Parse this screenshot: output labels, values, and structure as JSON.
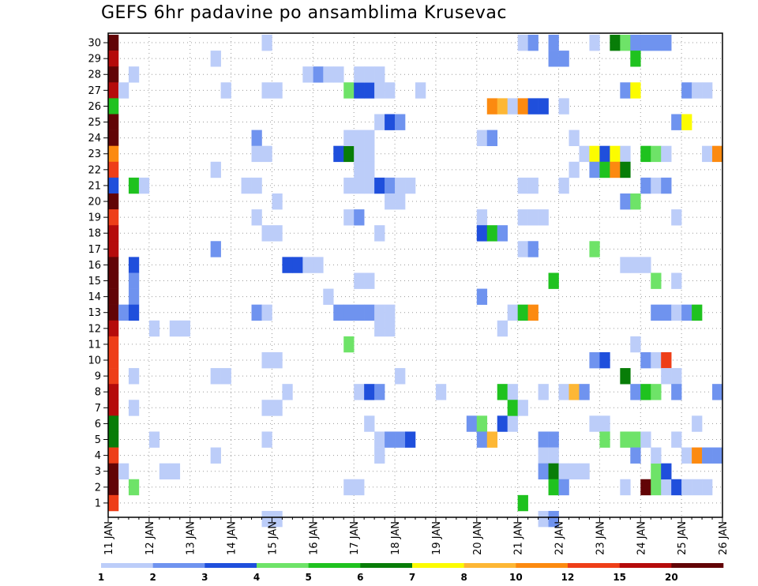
{
  "chart_data": {
    "type": "heatmap",
    "title": "GEFS 6hr padavine po ansamblima Krusevac",
    "xlabel": "",
    "ylabel": "",
    "x_ticks": [
      "11 JAN",
      "12 JAN",
      "13 JAN",
      "14 JAN",
      "15 JAN",
      "16 JAN",
      "17 JAN",
      "18 JAN",
      "19 JAN",
      "20 JAN",
      "21 JAN",
      "22 JAN",
      "23 JAN",
      "24 JAN",
      "25 JAN",
      "26 JAN"
    ],
    "y_ticks": [
      1,
      2,
      3,
      4,
      5,
      6,
      7,
      8,
      9,
      10,
      11,
      12,
      13,
      14,
      15,
      16,
      17,
      18,
      19,
      20,
      21,
      22,
      23,
      24,
      25,
      26,
      27,
      28,
      29,
      30
    ],
    "xlim": [
      0,
      60
    ],
    "ylim": [
      0,
      30
    ],
    "grid": true,
    "colorbar": {
      "levels": [
        "1",
        "2",
        "3",
        "4",
        "5",
        "6",
        "7",
        "8",
        "10",
        "12",
        "15",
        "20"
      ],
      "colors": [
        "#bccdf9",
        "#6f93ef",
        "#1f4fdc",
        "#6ee368",
        "#1fc21f",
        "#087d08",
        "#fcfc00",
        "#fdb735",
        "#fc8a10",
        "#ee3e18",
        "#b50b0b",
        "#620406"
      ]
    },
    "cells": [
      [
        0,
        30,
        11
      ],
      [
        0,
        29,
        10
      ],
      [
        0,
        28,
        11
      ],
      [
        0,
        27,
        10
      ],
      [
        0,
        26,
        4
      ],
      [
        0,
        25,
        11
      ],
      [
        0,
        24,
        11
      ],
      [
        0,
        23,
        8
      ],
      [
        0,
        22,
        9
      ],
      [
        0,
        21,
        2
      ],
      [
        0,
        20,
        11
      ],
      [
        0,
        19,
        9
      ],
      [
        0,
        18,
        10
      ],
      [
        0,
        17,
        10
      ],
      [
        0,
        16,
        11
      ],
      [
        0,
        15,
        11
      ],
      [
        0,
        14,
        11
      ],
      [
        0,
        13,
        11
      ],
      [
        0,
        12,
        10
      ],
      [
        0,
        11,
        9
      ],
      [
        0,
        10,
        9
      ],
      [
        0,
        9,
        9
      ],
      [
        0,
        8,
        10
      ],
      [
        0,
        7,
        10
      ],
      [
        0,
        6,
        5
      ],
      [
        0,
        5,
        5
      ],
      [
        0,
        4,
        9
      ],
      [
        0,
        3,
        11
      ],
      [
        0,
        2,
        11
      ],
      [
        0,
        1,
        9
      ],
      [
        1,
        27,
        0
      ],
      [
        1,
        13,
        1
      ],
      [
        1,
        3,
        0
      ],
      [
        2,
        28,
        0
      ],
      [
        2,
        21,
        4
      ],
      [
        2,
        16,
        2
      ],
      [
        2,
        15,
        1
      ],
      [
        2,
        14,
        1
      ],
      [
        2,
        13,
        2
      ],
      [
        2,
        9,
        0
      ],
      [
        2,
        7,
        0
      ],
      [
        2,
        2,
        3
      ],
      [
        3,
        21,
        0
      ],
      [
        4,
        12,
        0
      ],
      [
        4,
        5,
        0
      ],
      [
        5,
        3,
        0
      ],
      [
        6,
        12,
        0
      ],
      [
        6,
        3,
        0
      ],
      [
        7,
        12,
        0
      ],
      [
        10,
        29,
        0
      ],
      [
        10,
        22,
        0
      ],
      [
        10,
        17,
        1
      ],
      [
        10,
        9,
        0
      ],
      [
        10,
        4,
        0
      ],
      [
        11,
        27,
        0
      ],
      [
        11,
        9,
        0
      ],
      [
        13,
        21,
        0
      ],
      [
        14,
        21,
        0
      ],
      [
        14,
        13,
        1
      ],
      [
        15,
        13,
        0
      ],
      [
        14,
        24,
        1
      ],
      [
        14,
        23,
        0
      ],
      [
        15,
        23,
        0
      ],
      [
        14,
        19,
        0
      ],
      [
        15,
        30,
        0
      ],
      [
        15,
        0,
        0
      ],
      [
        16,
        0,
        0
      ],
      [
        15,
        27,
        0
      ],
      [
        16,
        27,
        0
      ],
      [
        15,
        18,
        0
      ],
      [
        16,
        18,
        0
      ],
      [
        15,
        10,
        0
      ],
      [
        16,
        10,
        0
      ],
      [
        15,
        7,
        0
      ],
      [
        16,
        7,
        0
      ],
      [
        15,
        5,
        0
      ],
      [
        16,
        20,
        0
      ],
      [
        17,
        8,
        0
      ],
      [
        17,
        16,
        2
      ],
      [
        18,
        16,
        2
      ],
      [
        19,
        16,
        0
      ],
      [
        20,
        16,
        0
      ],
      [
        20,
        28,
        1
      ],
      [
        19,
        28,
        0
      ],
      [
        21,
        28,
        0
      ],
      [
        22,
        28,
        0
      ],
      [
        21,
        14,
        0
      ],
      [
        22,
        13,
        1
      ],
      [
        23,
        13,
        1
      ],
      [
        24,
        13,
        1
      ],
      [
        25,
        13,
        1
      ],
      [
        26,
        13,
        0
      ],
      [
        27,
        13,
        0
      ],
      [
        22,
        23,
        2
      ],
      [
        23,
        23,
        5
      ],
      [
        24,
        23,
        0
      ],
      [
        25,
        23,
        0
      ],
      [
        23,
        27,
        3
      ],
      [
        24,
        27,
        2
      ],
      [
        25,
        27,
        2
      ],
      [
        26,
        27,
        0
      ],
      [
        24,
        28,
        0
      ],
      [
        25,
        28,
        0
      ],
      [
        26,
        28,
        0
      ],
      [
        24,
        22,
        0
      ],
      [
        25,
        22,
        0
      ],
      [
        23,
        21,
        0
      ],
      [
        24,
        21,
        0
      ],
      [
        25,
        21,
        0
      ],
      [
        26,
        21,
        2
      ],
      [
        27,
        21,
        1
      ],
      [
        28,
        21,
        0
      ],
      [
        29,
        21,
        0
      ],
      [
        23,
        19,
        0
      ],
      [
        24,
        19,
        1
      ],
      [
        23,
        11,
        3
      ],
      [
        23,
        2,
        0
      ],
      [
        24,
        2,
        0
      ],
      [
        23,
        24,
        0
      ],
      [
        24,
        24,
        0
      ],
      [
        25,
        24,
        0
      ],
      [
        24,
        15,
        0
      ],
      [
        25,
        15,
        0
      ],
      [
        24,
        8,
        0
      ],
      [
        25,
        8,
        2
      ],
      [
        26,
        8,
        1
      ],
      [
        25,
        6,
        0
      ],
      [
        26,
        18,
        0
      ],
      [
        26,
        12,
        0
      ],
      [
        27,
        12,
        0
      ],
      [
        26,
        5,
        0
      ],
      [
        27,
        5,
        1
      ],
      [
        28,
        5,
        1
      ],
      [
        29,
        5,
        2
      ],
      [
        26,
        4,
        0
      ],
      [
        26,
        25,
        0
      ],
      [
        27,
        25,
        2
      ],
      [
        28,
        25,
        1
      ],
      [
        27,
        20,
        0
      ],
      [
        28,
        20,
        0
      ],
      [
        27,
        27,
        0
      ],
      [
        28,
        9,
        0
      ],
      [
        30,
        27,
        0
      ],
      [
        32,
        8,
        0
      ],
      [
        36,
        24,
        0
      ],
      [
        37,
        24,
        1
      ],
      [
        36,
        19,
        0
      ],
      [
        36,
        18,
        2
      ],
      [
        37,
        18,
        4
      ],
      [
        38,
        18,
        1
      ],
      [
        36,
        14,
        1
      ],
      [
        35,
        6,
        1
      ],
      [
        36,
        6,
        3
      ],
      [
        36,
        5,
        1
      ],
      [
        37,
        5,
        7
      ],
      [
        37,
        26,
        8
      ],
      [
        38,
        26,
        7
      ],
      [
        39,
        26,
        0
      ],
      [
        40,
        26,
        8
      ],
      [
        41,
        26,
        2
      ],
      [
        42,
        26,
        2
      ],
      [
        38,
        12,
        0
      ],
      [
        38,
        8,
        4
      ],
      [
        39,
        8,
        0
      ],
      [
        38,
        6,
        2
      ],
      [
        39,
        6,
        0
      ],
      [
        39,
        7,
        4
      ],
      [
        39,
        13,
        0
      ],
      [
        40,
        13,
        4
      ],
      [
        41,
        13,
        8
      ],
      [
        40,
        30,
        0
      ],
      [
        41,
        30,
        1
      ],
      [
        40,
        21,
        0
      ],
      [
        41,
        21,
        0
      ],
      [
        40,
        19,
        0
      ],
      [
        41,
        19,
        0
      ],
      [
        42,
        19,
        0
      ],
      [
        40,
        17,
        0
      ],
      [
        41,
        17,
        1
      ],
      [
        40,
        7,
        0
      ],
      [
        40,
        1,
        4
      ],
      [
        42,
        8,
        0
      ],
      [
        42,
        5,
        1
      ],
      [
        43,
        5,
        1
      ],
      [
        42,
        4,
        0
      ],
      [
        43,
        4,
        0
      ],
      [
        42,
        3,
        1
      ],
      [
        43,
        3,
        5
      ],
      [
        44,
        3,
        0
      ],
      [
        45,
        3,
        0
      ],
      [
        46,
        3,
        0
      ],
      [
        42,
        0,
        0
      ],
      [
        43,
        0,
        1
      ],
      [
        43,
        30,
        1
      ],
      [
        44,
        29,
        1
      ],
      [
        43,
        29,
        1
      ],
      [
        44,
        26,
        0
      ],
      [
        44,
        21,
        0
      ],
      [
        43,
        15,
        4
      ],
      [
        43,
        2,
        4
      ],
      [
        44,
        2,
        1
      ],
      [
        44,
        8,
        0
      ],
      [
        45,
        8,
        7
      ],
      [
        46,
        8,
        1
      ],
      [
        45,
        22,
        0
      ],
      [
        45,
        24,
        0
      ],
      [
        46,
        23,
        0
      ],
      [
        47,
        23,
        6
      ],
      [
        48,
        23,
        2
      ],
      [
        49,
        23,
        6
      ],
      [
        50,
        23,
        0
      ],
      [
        47,
        22,
        1
      ],
      [
        48,
        22,
        4
      ],
      [
        49,
        22,
        8
      ],
      [
        50,
        22,
        5
      ],
      [
        47,
        17,
        3
      ],
      [
        47,
        10,
        1
      ],
      [
        48,
        10,
        2
      ],
      [
        47,
        6,
        0
      ],
      [
        48,
        6,
        0
      ],
      [
        48,
        5,
        3
      ],
      [
        47,
        30,
        0
      ],
      [
        49,
        30,
        5
      ],
      [
        50,
        30,
        3
      ],
      [
        51,
        30,
        1
      ],
      [
        52,
        30,
        1
      ],
      [
        53,
        30,
        1
      ],
      [
        54,
        30,
        1
      ],
      [
        50,
        27,
        1
      ],
      [
        51,
        27,
        6
      ],
      [
        50,
        20,
        1
      ],
      [
        51,
        20,
        3
      ],
      [
        50,
        16,
        0
      ],
      [
        51,
        16,
        0
      ],
      [
        52,
        16,
        0
      ],
      [
        50,
        9,
        5
      ],
      [
        50,
        5,
        3
      ],
      [
        51,
        5,
        3
      ],
      [
        50,
        2,
        0
      ],
      [
        51,
        29,
        4
      ],
      [
        51,
        8,
        1
      ],
      [
        52,
        8,
        4
      ],
      [
        53,
        8,
        3
      ],
      [
        51,
        4,
        1
      ],
      [
        51,
        11,
        0
      ],
      [
        52,
        23,
        4
      ],
      [
        53,
        23,
        3
      ],
      [
        54,
        23,
        0
      ],
      [
        52,
        21,
        1
      ],
      [
        53,
        21,
        0
      ],
      [
        54,
        21,
        1
      ],
      [
        52,
        10,
        1
      ],
      [
        53,
        10,
        0
      ],
      [
        54,
        10,
        9
      ],
      [
        52,
        5,
        0
      ],
      [
        52,
        2,
        11
      ],
      [
        53,
        2,
        3
      ],
      [
        54,
        2,
        0
      ],
      [
        55,
        2,
        2
      ],
      [
        56,
        2,
        0
      ],
      [
        57,
        2,
        0
      ],
      [
        58,
        2,
        0
      ],
      [
        53,
        15,
        3
      ],
      [
        53,
        13,
        1
      ],
      [
        54,
        13,
        1
      ],
      [
        55,
        13,
        0
      ],
      [
        56,
        13,
        1
      ],
      [
        57,
        13,
        4
      ],
      [
        53,
        3,
        3
      ],
      [
        54,
        3,
        2
      ],
      [
        53,
        4,
        0
      ],
      [
        54,
        9,
        0
      ],
      [
        55,
        9,
        0
      ],
      [
        55,
        25,
        1
      ],
      [
        56,
        25,
        6
      ],
      [
        55,
        19,
        0
      ],
      [
        55,
        15,
        0
      ],
      [
        55,
        8,
        1
      ],
      [
        55,
        5,
        0
      ],
      [
        56,
        27,
        1
      ],
      [
        57,
        27,
        0
      ],
      [
        58,
        27,
        0
      ],
      [
        56,
        4,
        0
      ],
      [
        57,
        4,
        8
      ],
      [
        58,
        4,
        1
      ],
      [
        59,
        4,
        1
      ],
      [
        57,
        6,
        0
      ],
      [
        58,
        23,
        0
      ],
      [
        59,
        23,
        8
      ],
      [
        59,
        8,
        1
      ]
    ]
  }
}
